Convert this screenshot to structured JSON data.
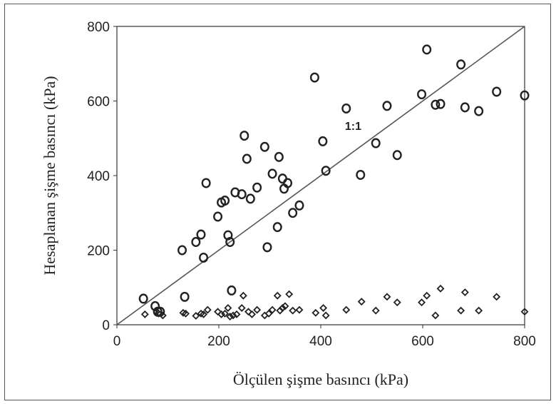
{
  "chart_data": {
    "type": "scatter",
    "xlabel": "Ölçülen şişme basıncı (kPa)",
    "ylabel": "Hesaplanan şişme basıncı (kPa)",
    "xlim": [
      0,
      800
    ],
    "ylim": [
      0,
      800
    ],
    "xticks": [
      0,
      200,
      400,
      600,
      800
    ],
    "yticks": [
      0,
      200,
      400,
      600,
      800
    ],
    "reference_line": {
      "label": "1:1",
      "from": [
        0,
        0
      ],
      "to": [
        800,
        800
      ]
    },
    "colors": {
      "marker": "#222222",
      "line": "#555555"
    },
    "series": [
      {
        "marker": "circle",
        "points": [
          [
            52,
            70
          ],
          [
            75,
            50
          ],
          [
            80,
            35
          ],
          [
            85,
            35
          ],
          [
            128,
            200
          ],
          [
            133,
            75
          ],
          [
            155,
            222
          ],
          [
            165,
            242
          ],
          [
            170,
            180
          ],
          [
            175,
            380
          ],
          [
            198,
            290
          ],
          [
            205,
            328
          ],
          [
            212,
            333
          ],
          [
            218,
            240
          ],
          [
            222,
            222
          ],
          [
            225,
            92
          ],
          [
            232,
            355
          ],
          [
            245,
            350
          ],
          [
            250,
            507
          ],
          [
            255,
            445
          ],
          [
            262,
            338
          ],
          [
            275,
            368
          ],
          [
            290,
            477
          ],
          [
            295,
            208
          ],
          [
            305,
            405
          ],
          [
            315,
            262
          ],
          [
            318,
            450
          ],
          [
            325,
            392
          ],
          [
            328,
            365
          ],
          [
            335,
            380
          ],
          [
            345,
            300
          ],
          [
            358,
            320
          ],
          [
            388,
            663
          ],
          [
            404,
            492
          ],
          [
            410,
            413
          ],
          [
            450,
            580
          ],
          [
            478,
            402
          ],
          [
            508,
            487
          ],
          [
            530,
            587
          ],
          [
            550,
            455
          ],
          [
            598,
            618
          ],
          [
            608,
            738
          ],
          [
            625,
            590
          ],
          [
            635,
            592
          ],
          [
            675,
            698
          ],
          [
            683,
            583
          ],
          [
            710,
            573
          ],
          [
            745,
            625
          ],
          [
            800,
            615
          ]
        ]
      },
      {
        "marker": "diamond",
        "points": [
          [
            55,
            28
          ],
          [
            78,
            35
          ],
          [
            82,
            30
          ],
          [
            90,
            25
          ],
          [
            130,
            32
          ],
          [
            135,
            30
          ],
          [
            155,
            24
          ],
          [
            165,
            30
          ],
          [
            170,
            28
          ],
          [
            178,
            40
          ],
          [
            198,
            35
          ],
          [
            205,
            28
          ],
          [
            212,
            30
          ],
          [
            218,
            45
          ],
          [
            222,
            22
          ],
          [
            228,
            25
          ],
          [
            235,
            28
          ],
          [
            245,
            45
          ],
          [
            248,
            78
          ],
          [
            258,
            35
          ],
          [
            265,
            28
          ],
          [
            275,
            40
          ],
          [
            290,
            25
          ],
          [
            298,
            30
          ],
          [
            305,
            40
          ],
          [
            315,
            78
          ],
          [
            320,
            38
          ],
          [
            325,
            45
          ],
          [
            330,
            50
          ],
          [
            338,
            82
          ],
          [
            345,
            38
          ],
          [
            358,
            40
          ],
          [
            390,
            32
          ],
          [
            405,
            45
          ],
          [
            410,
            25
          ],
          [
            450,
            40
          ],
          [
            480,
            62
          ],
          [
            508,
            38
          ],
          [
            530,
            75
          ],
          [
            550,
            60
          ],
          [
            598,
            60
          ],
          [
            608,
            78
          ],
          [
            625,
            25
          ],
          [
            635,
            97
          ],
          [
            675,
            38
          ],
          [
            683,
            87
          ],
          [
            710,
            38
          ],
          [
            745,
            75
          ],
          [
            800,
            35
          ]
        ]
      }
    ]
  }
}
